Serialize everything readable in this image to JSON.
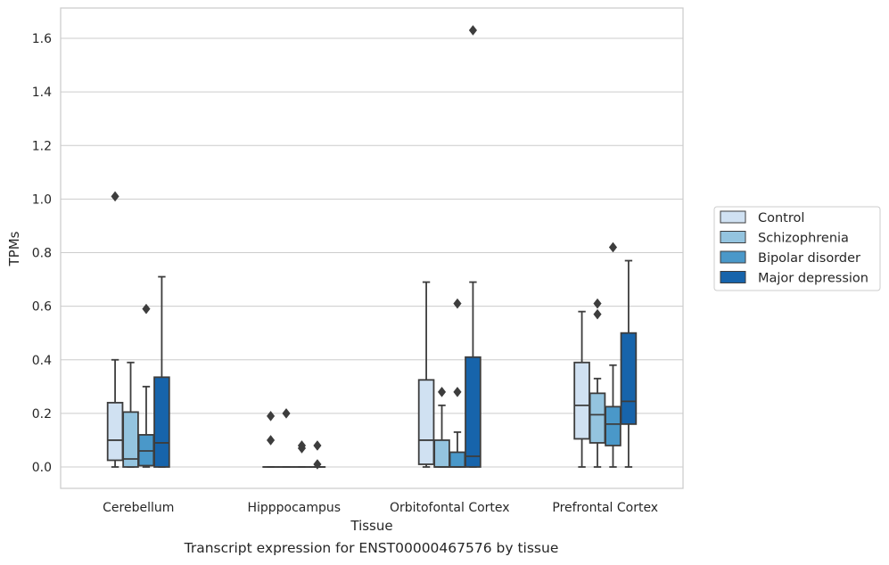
{
  "caption": "Transcript expression for ENST00000467576 by tissue",
  "chart_data": {
    "type": "box",
    "xlabel": "Tissue",
    "ylabel": "TPMs",
    "ylim": [
      -0.08,
      1.72
    ],
    "yticks": [
      "0.0",
      "0.2",
      "0.4",
      "0.6",
      "0.8",
      "1.0",
      "1.2",
      "1.4",
      "1.6"
    ],
    "grid": "horizontal",
    "legend_position": "right",
    "categories": [
      "Cerebellum",
      "Hipppocampus",
      "Orbitofontal Cortex",
      "Prefrontal Cortex"
    ],
    "series": [
      {
        "name": "Control",
        "color": "#d0e1f2",
        "boxes": [
          {
            "whislo": 0.0,
            "q1": 0.025,
            "med": 0.1,
            "q3": 0.24,
            "whishi": 0.4,
            "fliers": [
              1.01
            ]
          },
          {
            "whislo": 0.0,
            "q1": 0.0,
            "med": 0.0,
            "q3": 0.0,
            "whishi": 0.0,
            "fliers": [
              0.1,
              0.19
            ]
          },
          {
            "whislo": 0.0,
            "q1": 0.01,
            "med": 0.1,
            "q3": 0.325,
            "whishi": 0.69,
            "fliers": []
          },
          {
            "whislo": 0.0,
            "q1": 0.105,
            "med": 0.23,
            "q3": 0.39,
            "whishi": 0.58,
            "fliers": []
          }
        ]
      },
      {
        "name": "Schizophrenia",
        "color": "#94c4df",
        "boxes": [
          {
            "whislo": 0.0,
            "q1": 0.0,
            "med": 0.03,
            "q3": 0.205,
            "whishi": 0.39,
            "fliers": []
          },
          {
            "whislo": 0.0,
            "q1": 0.0,
            "med": 0.0,
            "q3": 0.0,
            "whishi": 0.0,
            "fliers": [
              0.2
            ]
          },
          {
            "whislo": 0.0,
            "q1": 0.0,
            "med": 0.0,
            "q3": 0.1,
            "whishi": 0.23,
            "fliers": [
              0.28
            ]
          },
          {
            "whislo": 0.0,
            "q1": 0.09,
            "med": 0.195,
            "q3": 0.275,
            "whishi": 0.33,
            "fliers": [
              0.57,
              0.61
            ]
          }
        ]
      },
      {
        "name": "Bipolar disorder",
        "color": "#4a98c9",
        "boxes": [
          {
            "whislo": 0.0,
            "q1": 0.005,
            "med": 0.06,
            "q3": 0.12,
            "whishi": 0.3,
            "fliers": [
              0.59
            ]
          },
          {
            "whislo": 0.0,
            "q1": 0.0,
            "med": 0.0,
            "q3": 0.0,
            "whishi": 0.0,
            "fliers": [
              0.07,
              0.08
            ]
          },
          {
            "whislo": 0.0,
            "q1": 0.0,
            "med": 0.0,
            "q3": 0.055,
            "whishi": 0.13,
            "fliers": [
              0.28,
              0.61
            ]
          },
          {
            "whislo": 0.0,
            "q1": 0.08,
            "med": 0.16,
            "q3": 0.225,
            "whishi": 0.38,
            "fliers": [
              0.82
            ]
          }
        ]
      },
      {
        "name": "Major depression",
        "color": "#1764ab",
        "boxes": [
          {
            "whislo": 0.0,
            "q1": 0.0,
            "med": 0.09,
            "q3": 0.335,
            "whishi": 0.71,
            "fliers": []
          },
          {
            "whislo": 0.0,
            "q1": 0.0,
            "med": 0.0,
            "q3": 0.0,
            "whishi": 0.0,
            "fliers": [
              0.01,
              0.08
            ]
          },
          {
            "whislo": 0.0,
            "q1": 0.0,
            "med": 0.04,
            "q3": 0.41,
            "whishi": 0.69,
            "fliers": [
              1.63
            ]
          },
          {
            "whislo": 0.0,
            "q1": 0.16,
            "med": 0.245,
            "q3": 0.5,
            "whishi": 0.77,
            "fliers": []
          }
        ]
      }
    ]
  }
}
